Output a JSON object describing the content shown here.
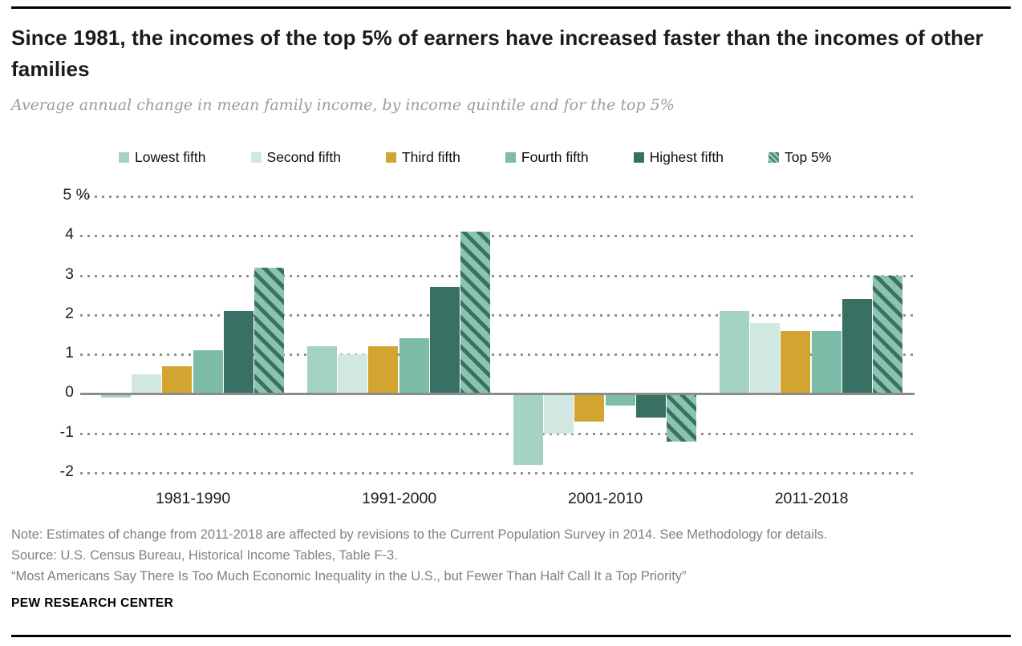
{
  "header": {
    "title": "Since 1981, the incomes of the top 5% of earners have increased faster than the incomes of other families",
    "subtitle": "Average annual change in mean family income, by income quintile and for the top 5%"
  },
  "chart_data": {
    "type": "bar",
    "title": "Since 1981, the incomes of the top 5% of earners have increased faster than the incomes of other families",
    "subtitle": "Average annual change in mean family income, by income quintile and for the top 5%",
    "categories": [
      "1981-1990",
      "1991-2000",
      "2001-2010",
      "2011-2018"
    ],
    "series": [
      {
        "name": "Lowest fifth",
        "color": "#a4d2c5",
        "hatch": false,
        "values": [
          -0.1,
          1.2,
          -1.8,
          2.1
        ]
      },
      {
        "name": "Second fifth",
        "color": "#d1e8e2",
        "hatch": false,
        "values": [
          0.5,
          1.0,
          -1.0,
          1.8
        ]
      },
      {
        "name": "Third fifth",
        "color": "#d1a52f",
        "hatch": false,
        "values": [
          0.7,
          1.2,
          -0.7,
          1.6
        ]
      },
      {
        "name": "Fourth fifth",
        "color": "#7dbca8",
        "hatch": false,
        "values": [
          1.1,
          1.4,
          -0.3,
          1.6
        ]
      },
      {
        "name": "Highest fifth",
        "color": "#387163",
        "hatch": false,
        "values": [
          2.1,
          2.7,
          -0.6,
          2.4
        ]
      },
      {
        "name": "Top 5%",
        "color": "#8ac4b0",
        "hatch": true,
        "hatch_color": "#3a7164",
        "values": [
          3.2,
          4.1,
          -1.2,
          3.0
        ]
      }
    ],
    "ylim": [
      -2,
      5
    ],
    "yticks": [
      5,
      4,
      3,
      2,
      1,
      0,
      -1,
      -2
    ],
    "ytick_labels": [
      "5 %",
      "4",
      "3",
      "2",
      "1",
      "0",
      "-1",
      "-2"
    ],
    "grid": "horizontal-dotted",
    "zero_line": true,
    "legend_position": "top",
    "colors": {
      "grid_dot": "#919191",
      "zero_line": "#8c8c8c",
      "gold_accent": "#d1a52f",
      "dark_teal": "#387163",
      "light_teal": "#a4d2c5"
    }
  },
  "footer": {
    "note": "Note: Estimates of change from 2011-2018 are affected by revisions to the Current Population Survey in 2014. See Methodology for details.",
    "source": "Source: U.S. Census Bureau, Historical Income Tables, Table F-3.",
    "report_title": "“Most Americans Say There Is Too Much Economic Inequality in the U.S., but Fewer Than Half Call It a Top Priority”",
    "brand": "PEW RESEARCH CENTER"
  }
}
